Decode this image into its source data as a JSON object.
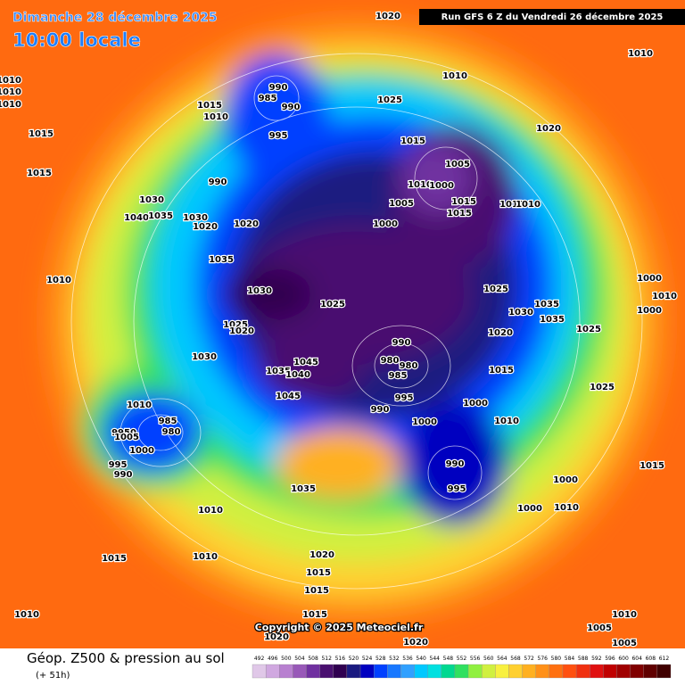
{
  "header": {
    "date": "Dimanche 28 décembre 2025",
    "time": "10:00 locale",
    "run": "Run GFS 6 Z du Vendredi 26 décembre 2025"
  },
  "footer": {
    "title": "Géop. Z500 & pression au sol",
    "lead": "(+ 51h)",
    "copyright": "Copyright © 2025 Meteociel.fr"
  },
  "scale": {
    "values": [
      492,
      496,
      500,
      504,
      508,
      512,
      516,
      520,
      524,
      528,
      532,
      536,
      540,
      544,
      548,
      552,
      556,
      560,
      564,
      568,
      572,
      576,
      580,
      584,
      588,
      592,
      596,
      600,
      604,
      608,
      612
    ],
    "colors": [
      "#e0c8e8",
      "#d0a8e0",
      "#b880d0",
      "#9858b8",
      "#7030a0",
      "#4a1070",
      "#300050",
      "#1a1a80",
      "#0000c0",
      "#0040ff",
      "#1878ff",
      "#30a0ff",
      "#00c8ff",
      "#00e0e0",
      "#00d890",
      "#30e060",
      "#90f040",
      "#d0f040",
      "#f8f040",
      "#ffd030",
      "#ffb020",
      "#ff9018",
      "#ff7010",
      "#ff5010",
      "#f03010",
      "#e01010",
      "#c00000",
      "#a00000",
      "#800000",
      "#600000",
      "#400000"
    ]
  },
  "pressure_labels": [
    "1020",
    "1010",
    "1010",
    "1010",
    "1010",
    "1010",
    "990",
    "985",
    "990",
    "1015",
    "1010",
    "1025",
    "1020",
    "1015",
    "995",
    "1015",
    "1005",
    "1015",
    "990",
    "1030",
    "1010",
    "1000",
    "1015",
    "1005",
    "1010",
    "1010",
    "1040",
    "1035",
    "1030",
    "1020",
    "1020",
    "1000",
    "1015",
    "1035",
    "1010",
    "1025",
    "1030",
    "1035",
    "1030",
    "1000",
    "1025",
    "1010",
    "1000",
    "1035",
    "1025",
    "1020",
    "1020",
    "1025",
    "990",
    "1030",
    "980",
    "980",
    "1045",
    "985",
    "1035",
    "1040",
    "1015",
    "1025",
    "1045",
    "995",
    "1000",
    "1010",
    "990",
    "1000",
    "1010",
    "985",
    "9950",
    "980",
    "1005",
    "1000",
    "990",
    "995",
    "990",
    "995",
    "1015",
    "1000",
    "1035",
    "1000",
    "1010",
    "1010",
    "1015",
    "1010",
    "1020",
    "1015",
    "1015",
    "1010",
    "1015",
    "1010",
    "1005",
    "1020",
    "1020",
    "1005"
  ]
}
